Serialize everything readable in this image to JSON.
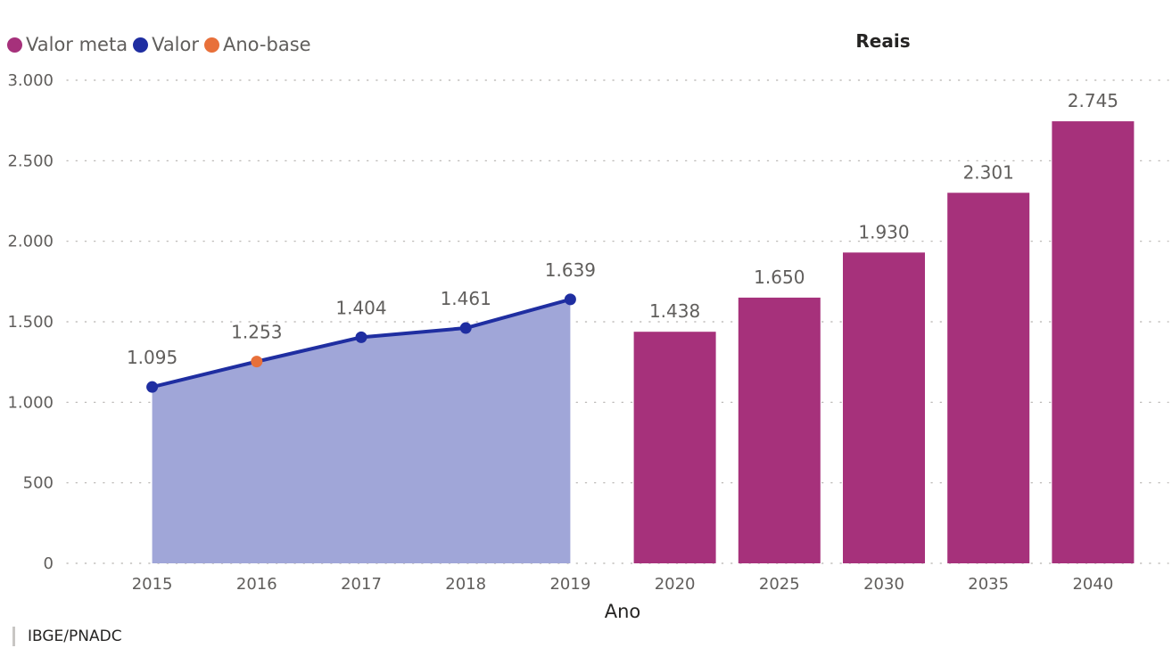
{
  "legend": [
    {
      "label": "Valor meta",
      "color": "#a6317b"
    },
    {
      "label": "Valor",
      "color": "#1f2ea1"
    },
    {
      "label": "Ano-base",
      "color": "#e8703a"
    }
  ],
  "source": "IBGE/PNADC",
  "chart_data": {
    "type": "bar",
    "title": "Reais",
    "xlabel": "Ano",
    "ylabel": "",
    "ylim": [
      0,
      3000
    ],
    "yticks": [
      0,
      500,
      1000,
      1500,
      2000,
      2500,
      3000
    ],
    "ytick_labels": [
      "0",
      "500",
      "1.000",
      "1.500",
      "2.000",
      "2.500",
      "3.000"
    ],
    "grid": true,
    "legend_position": "top-left",
    "categories": [
      "2015",
      "2016",
      "2017",
      "2018",
      "2019",
      "2020",
      "2025",
      "2030",
      "2035",
      "2040"
    ],
    "series": [
      {
        "name": "Valor",
        "type": "area",
        "color": "#1f2ea1",
        "fill_color": "#a0a6d8",
        "x": [
          "2015",
          "2016",
          "2017",
          "2018",
          "2019"
        ],
        "values": [
          1095,
          1253,
          1404,
          1461,
          1639
        ],
        "labels": [
          "1.095",
          "1.253",
          "1.404",
          "1.461",
          "1.639"
        ]
      },
      {
        "name": "Ano-base",
        "type": "point",
        "color": "#e8703a",
        "x": [
          "2016"
        ],
        "values": [
          1253
        ]
      },
      {
        "name": "Valor meta",
        "type": "bar",
        "color": "#a6317b",
        "x": [
          "2020",
          "2025",
          "2030",
          "2035",
          "2040"
        ],
        "values": [
          1438,
          1650,
          1930,
          2301,
          2745
        ],
        "labels": [
          "1.438",
          "1.650",
          "1.930",
          "2.301",
          "2.745"
        ]
      }
    ]
  }
}
